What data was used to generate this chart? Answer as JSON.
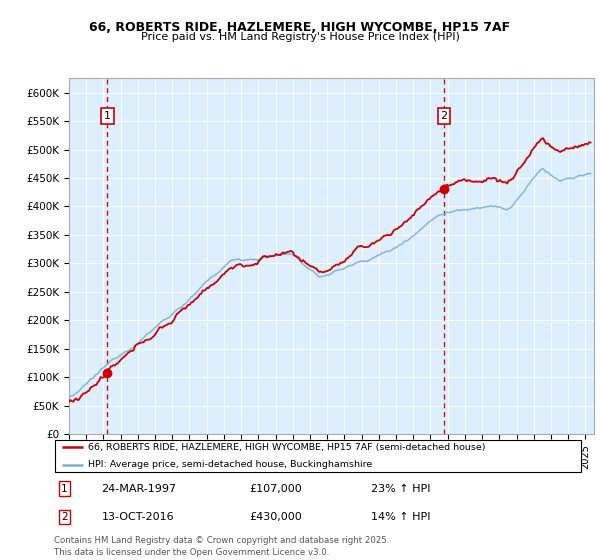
{
  "title_line1": "66, ROBERTS RIDE, HAZLEMERE, HIGH WYCOMBE, HP15 7AF",
  "title_line2": "Price paid vs. HM Land Registry's House Price Index (HPI)",
  "ylim": [
    0,
    625000
  ],
  "yticks": [
    0,
    50000,
    100000,
    150000,
    200000,
    250000,
    300000,
    350000,
    400000,
    450000,
    500000,
    550000,
    600000
  ],
  "ytick_labels": [
    "£0",
    "£50K",
    "£100K",
    "£150K",
    "£200K",
    "£250K",
    "£300K",
    "£350K",
    "£400K",
    "£450K",
    "£500K",
    "£550K",
    "£600K"
  ],
  "sale1_date": "24-MAR-1997",
  "sale1_price": 107000,
  "sale1_label": "23% ↑ HPI",
  "sale1_x": 1997.23,
  "sale2_date": "13-OCT-2016",
  "sale2_price": 430000,
  "sale2_label": "14% ↑ HPI",
  "sale2_x": 2016.79,
  "property_line_color": "#cc0000",
  "hpi_line_color": "#7bafd4",
  "background_color": "#ddeeff",
  "grid_color": "#ffffff",
  "legend_property": "66, ROBERTS RIDE, HAZLEMERE, HIGH WYCOMBE, HP15 7AF (semi-detached house)",
  "legend_hpi": "HPI: Average price, semi-detached house, Buckinghamshire",
  "footnote": "Contains HM Land Registry data © Crown copyright and database right 2025.\nThis data is licensed under the Open Government Licence v3.0.",
  "xmin": 1995.0,
  "xmax": 2025.5
}
